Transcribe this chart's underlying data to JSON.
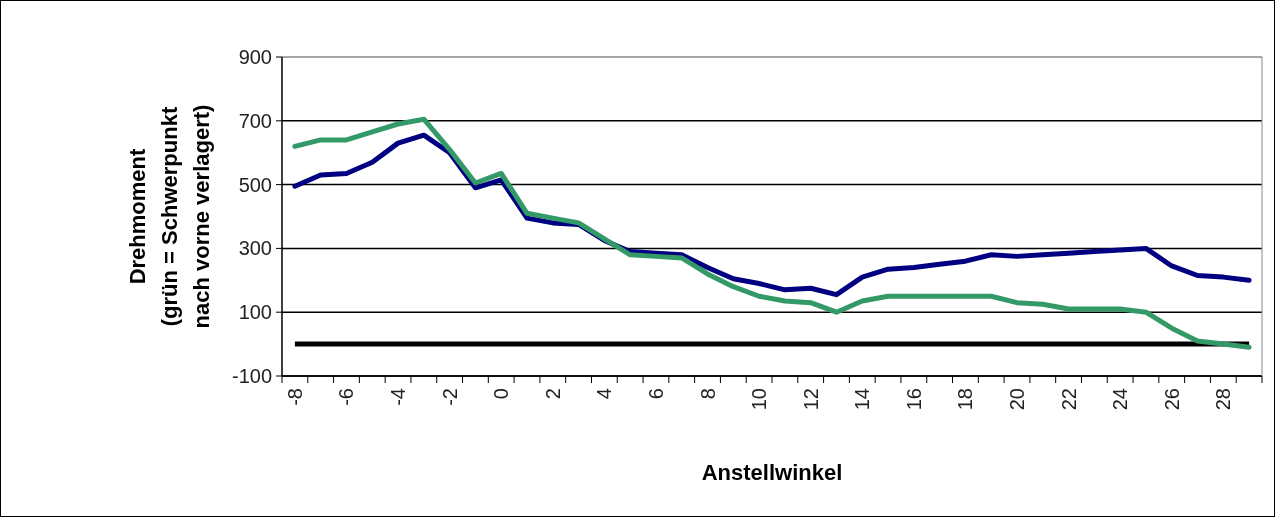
{
  "chart_data": {
    "type": "line",
    "xlabel": "Anstellwinkel",
    "ylabel": "Drehmoment\n(grün = Schwerpunkt\nnach vorne verlagert)",
    "categories": [
      "-8",
      null,
      "-6",
      null,
      "-4",
      null,
      "-2",
      null,
      "0",
      null,
      "2",
      null,
      "4",
      null,
      "6",
      null,
      "8",
      null,
      "10",
      null,
      "12",
      null,
      "14",
      null,
      "16",
      null,
      "18",
      null,
      "20",
      null,
      "22",
      null,
      "24",
      null,
      "26",
      null,
      "28",
      null
    ],
    "series": [
      {
        "color": "#000080",
        "values": [
          495,
          530,
          535,
          570,
          630,
          655,
          600,
          490,
          515,
          395,
          380,
          375,
          325,
          290,
          285,
          280,
          240,
          205,
          190,
          170,
          175,
          155,
          210,
          235,
          240,
          250,
          260,
          280,
          275,
          280,
          285,
          290,
          295,
          300,
          245,
          215,
          210,
          200
        ]
      },
      {
        "color": "#339966",
        "values": [
          620,
          640,
          640,
          665,
          690,
          705,
          610,
          505,
          535,
          410,
          395,
          380,
          330,
          280,
          275,
          270,
          220,
          180,
          150,
          135,
          130,
          100,
          135,
          150,
          150,
          150,
          150,
          150,
          130,
          125,
          110,
          110,
          110,
          100,
          50,
          10,
          0,
          -10
        ]
      }
    ],
    "ylim": [
      -100,
      900
    ],
    "yticks": [
      -100,
      100,
      300,
      500,
      700,
      900
    ],
    "grid": "y",
    "ref_lines": [
      {
        "axis": "y",
        "value": 0,
        "color": "#000000"
      }
    ]
  }
}
